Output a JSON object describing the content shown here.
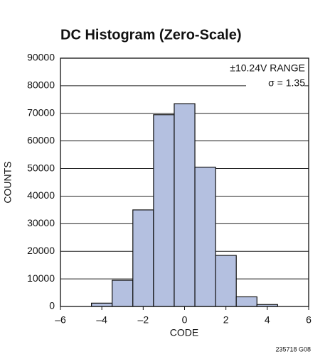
{
  "chart_data": {
    "type": "histogram",
    "title": "DC Histogram (Zero-Scale)",
    "xlabel": "CODE",
    "ylabel": "COUNTS",
    "annotations": [
      "±10.24V RANGE",
      "σ = 1.35"
    ],
    "footnote": "235718 G08",
    "bins": [
      -4.5,
      -3.5,
      -2.5,
      -1.5,
      -0.5,
      0.5,
      1.5,
      2.5,
      3.5,
      4.5
    ],
    "values": [
      1200,
      9500,
      35000,
      69500,
      73500,
      50500,
      18500,
      3500,
      700
    ],
    "color": "#b4c0e0",
    "xlim": [
      -6,
      6
    ],
    "xticks": [
      {
        "value": -6,
        "label": "–6"
      },
      {
        "value": -4,
        "label": "–4"
      },
      {
        "value": -2,
        "label": "–2"
      },
      0,
      2,
      4,
      6
    ],
    "ylim": [
      0,
      90000
    ],
    "yticks": [
      0,
      10000,
      20000,
      30000,
      40000,
      50000,
      60000,
      70000,
      80000,
      90000
    ],
    "grid": true
  }
}
